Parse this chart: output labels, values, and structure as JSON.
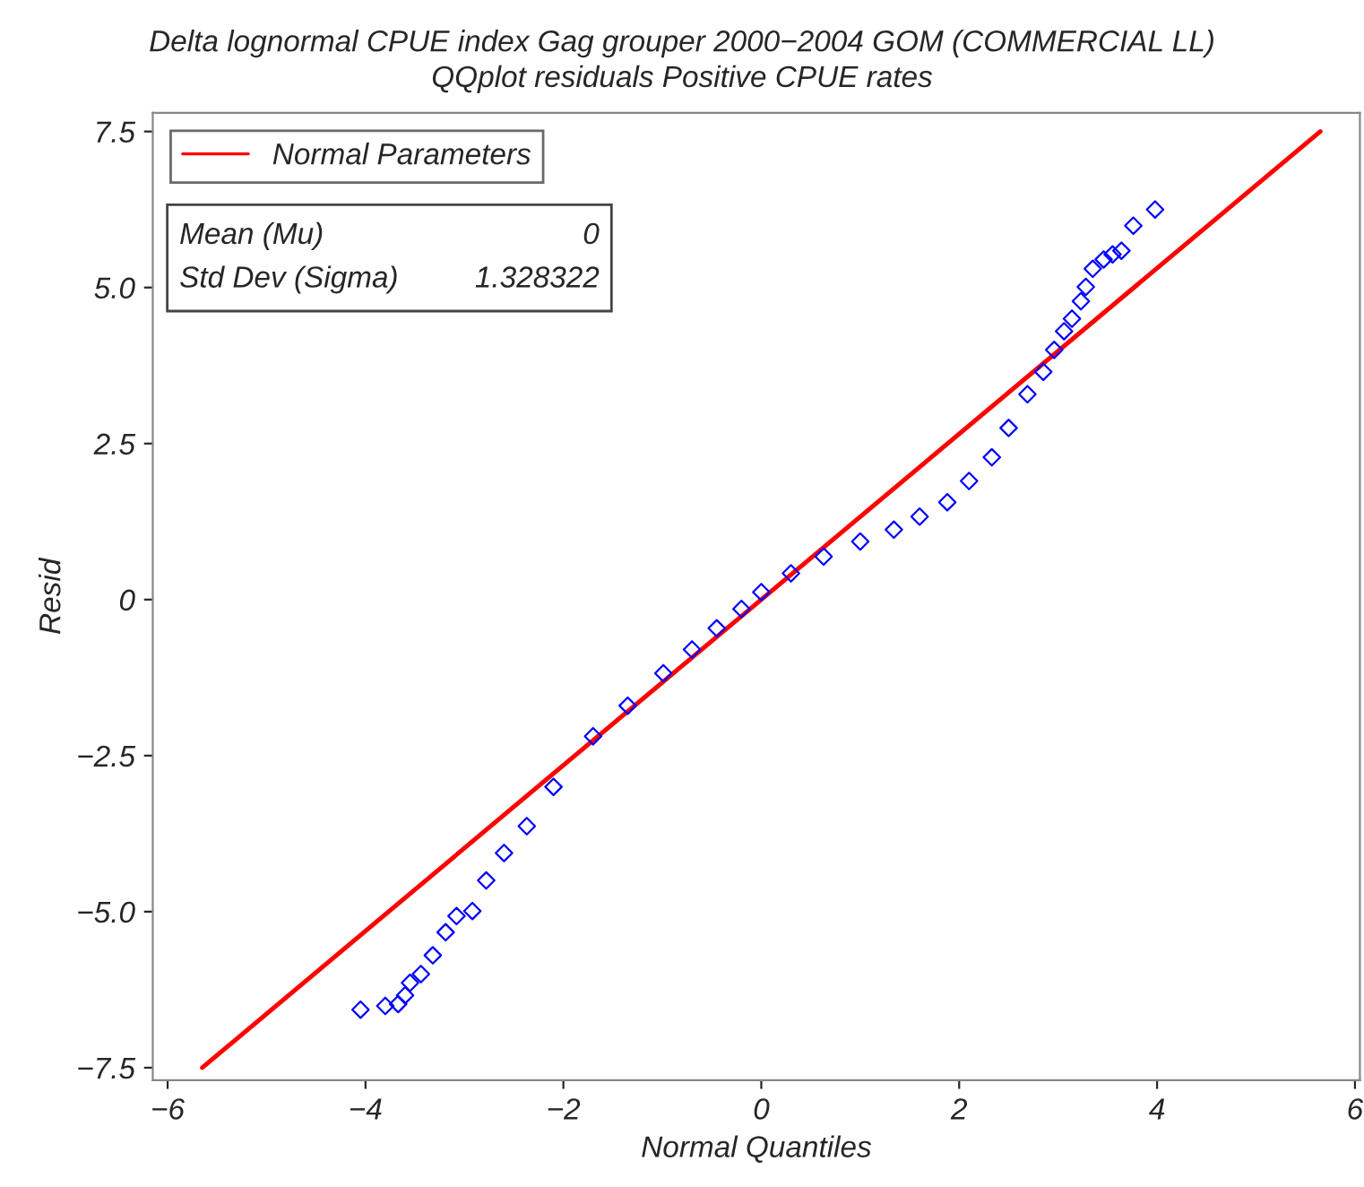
{
  "chart_data": {
    "type": "scatter",
    "title": "Delta lognormal CPUE index Gag grouper 2000−2004 GOM (COMMERCIAL LL)",
    "subtitle": "QQplot residuals Positive CPUE rates",
    "xlabel": "Normal Quantiles",
    "ylabel": "Resid",
    "series": [
      {
        "color": "#0000ff",
        "marker": "diamond",
        "x": [
          -4.05,
          -3.8,
          -3.67,
          -3.6,
          -3.55,
          -3.44,
          -3.32,
          -3.19,
          -3.08,
          -2.92,
          -2.78,
          -2.6,
          -2.37,
          -2.1,
          -1.7,
          -1.35,
          -0.99,
          -0.7,
          -0.45,
          -0.2,
          0,
          0.3,
          0.63,
          1.0,
          1.34,
          1.6,
          1.88,
          2.1,
          2.33,
          2.5,
          2.69,
          2.85,
          2.96,
          3.06,
          3.14,
          3.23,
          3.28,
          3.35,
          3.46,
          3.55,
          3.64,
          3.76,
          3.98
        ],
        "values": [
          -6.57,
          -6.51,
          -6.48,
          -6.34,
          -6.14,
          -6.0,
          -5.7,
          -5.33,
          -5.07,
          -4.99,
          -4.5,
          -4.06,
          -3.63,
          -3.0,
          -2.19,
          -1.7,
          -1.18,
          -0.8,
          -0.46,
          -0.15,
          0.12,
          0.42,
          0.69,
          0.93,
          1.12,
          1.33,
          1.56,
          1.9,
          2.28,
          2.75,
          3.29,
          3.65,
          4.0,
          4.3,
          4.5,
          4.78,
          5.01,
          5.3,
          5.45,
          5.53,
          5.59,
          5.99,
          6.25
        ]
      },
      {
        "type": "line",
        "name": "Normal Parameters",
        "color": "#ff0000",
        "x": [
          -5.65,
          5.65
        ],
        "values": [
          -7.5,
          7.5
        ]
      }
    ],
    "annotations": [
      "Mean (Mu)",
      "0",
      "Std Dev (Sigma)",
      "1.328322"
    ],
    "xlim": [
      -6.15,
      6.05
    ],
    "ylim": [
      -7.7,
      7.8
    ],
    "xticks": [
      -6,
      -4,
      -2,
      0,
      2,
      4,
      6
    ],
    "yticks": [
      -7.5,
      {
        "value": -5,
        "label": "−5.0"
      },
      -2.5,
      0,
      2.5,
      {
        "value": 5,
        "label": "5.0"
      },
      7.5
    ],
    "grid": false,
    "legend": "top left"
  }
}
